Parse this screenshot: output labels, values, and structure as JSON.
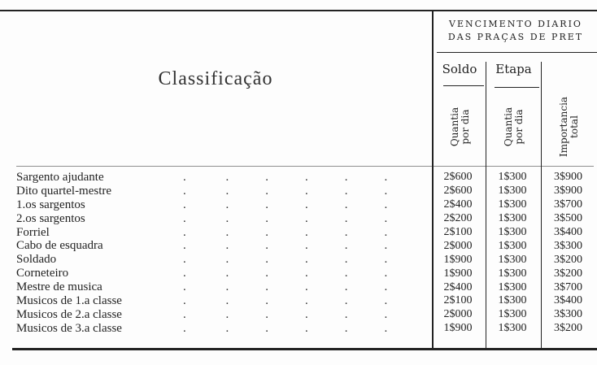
{
  "table": {
    "classification_header": "Classificação",
    "group_header": [
      "VENCIMENTO DIARIO",
      "DAS PRAÇAS DE PRET"
    ],
    "column_groups": [
      "Soldo",
      "Etapa"
    ],
    "columns": [
      "Quantia por dia",
      "Quantia por dia",
      "Importancia total"
    ],
    "rows": [
      {
        "label": "Sargento ajudante",
        "soldo": "2$600",
        "etapa": "1$300",
        "total": "3$900"
      },
      {
        "label": "Dito quartel-mestre",
        "soldo": "2$600",
        "etapa": "1$300",
        "total": "3$900"
      },
      {
        "label": "1.os sargentos",
        "soldo": "2$400",
        "etapa": "1$300",
        "total": "3$700"
      },
      {
        "label": "2.os sargentos",
        "soldo": "2$200",
        "etapa": "1$300",
        "total": "3$500"
      },
      {
        "label": "Forriel",
        "soldo": "2$100",
        "etapa": "1$300",
        "total": "3$400"
      },
      {
        "label": "Cabo de esquadra",
        "soldo": "2$000",
        "etapa": "1$300",
        "total": "3$300"
      },
      {
        "label": "Soldado",
        "soldo": "1$900",
        "etapa": "1$300",
        "total": "3$200"
      },
      {
        "label": "Corneteiro",
        "soldo": "1$900",
        "etapa": "1$300",
        "total": "3$200"
      },
      {
        "label": "Mestre de musica",
        "soldo": "2$400",
        "etapa": "1$300",
        "total": "3$700"
      },
      {
        "label": "Musicos de 1.a classe",
        "soldo": "2$100",
        "etapa": "1$300",
        "total": "3$400"
      },
      {
        "label": "Musicos de 2.a classe",
        "soldo": "2$000",
        "etapa": "1$300",
        "total": "3$300"
      },
      {
        "label": "Musicos de 3.a classe",
        "soldo": "1$900",
        "etapa": "1$300",
        "total": "3$200"
      }
    ]
  }
}
